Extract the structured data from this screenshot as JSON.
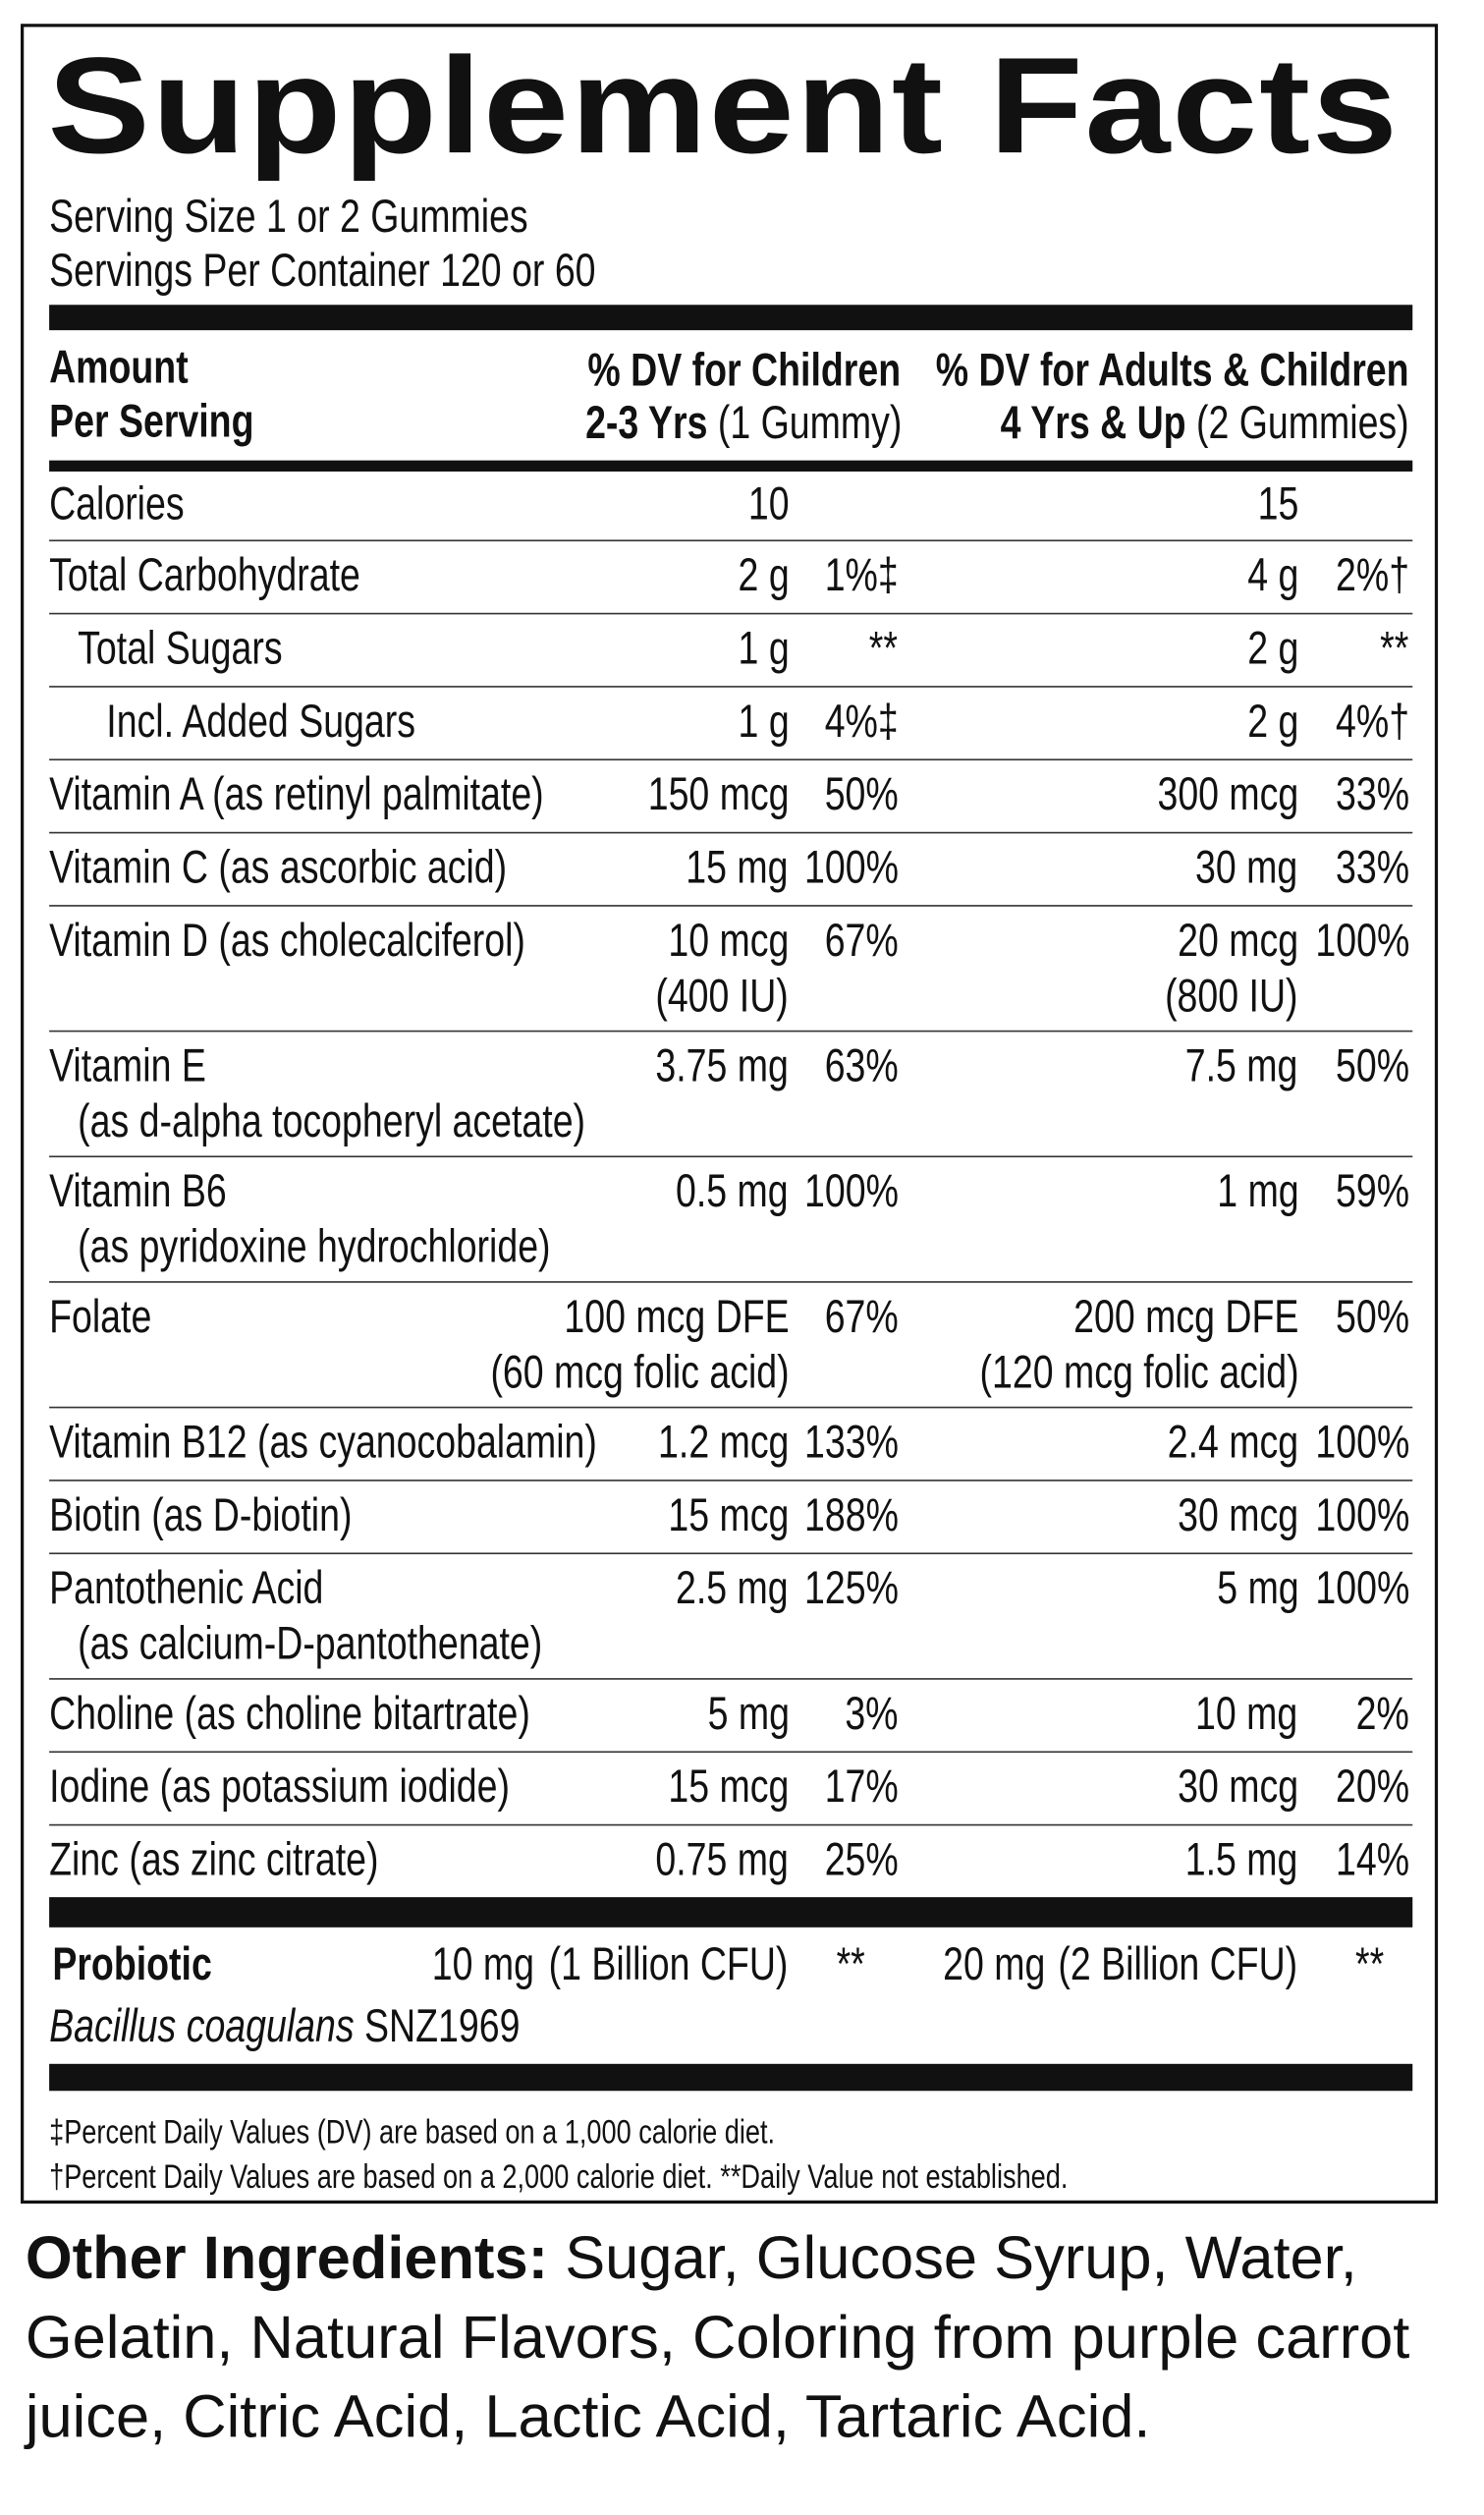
{
  "title": "Supplement Facts",
  "serving": [
    "Serving Size 1 or 2 Gummies",
    "Servings Per Container 120 or 60"
  ],
  "header": {
    "amount": [
      "Amount",
      "Per Serving"
    ],
    "children": {
      "line1": "% DV for Children",
      "bold": "2-3 Yrs",
      "regular": "(1 Gummy)"
    },
    "adults": {
      "line1": "% DV for Adults & Children",
      "bold": "4 Yrs & Up",
      "regular": "(2 Gummies)"
    }
  },
  "rows": [
    {
      "name": "Calories",
      "amount1": "10",
      "amount2": "15"
    },
    {
      "name": "Total Carbohydrate",
      "amount1": "2 g",
      "dv1": "1%‡",
      "amount2": "4 g",
      "dv2": "2%†"
    },
    {
      "name": "Total Sugars",
      "indent": 1,
      "amount1": "1 g",
      "dv1": "**",
      "amount2": "2 g",
      "dv2": "**"
    },
    {
      "name": "Incl. Added Sugars",
      "indent": 2,
      "amount1": "1 g",
      "dv1": "4%‡",
      "amount2": "2 g",
      "dv2": "4%†"
    },
    {
      "name": "Vitamin A (as retinyl palmitate)",
      "amount1": "150 mcg",
      "dv1": "50%",
      "amount2": "300 mcg",
      "dv2": "33%"
    },
    {
      "name": "Vitamin C (as ascorbic acid)",
      "amount1": "15 mg",
      "dv1": "100%",
      "amount2": "30 mg",
      "dv2": "33%"
    },
    {
      "name": "Vitamin D (as cholecalciferol)",
      "amount1": "10 mcg",
      "amount1b": "(400 IU)",
      "dv1": "67%",
      "amount2": "20 mcg",
      "amount2b": "(800 IU)",
      "dv2": "100%"
    },
    {
      "name": "Vitamin E",
      "note": "(as d-alpha tocopheryl acetate)",
      "amount1": "3.75 mg",
      "dv1": "63%",
      "amount2": "7.5 mg",
      "dv2": "50%"
    },
    {
      "name": "Vitamin B6",
      "note": "(as pyridoxine hydrochloride)",
      "amount1": "0.5 mg",
      "dv1": "100%",
      "amount2": "1 mg",
      "dv2": "59%"
    },
    {
      "name": "Folate",
      "amount1": "100 mcg DFE",
      "amount1b": "(60 mcg folic acid)",
      "dv1": "67%",
      "amount2": "200 mcg DFE",
      "amount2b": "(120 mcg folic acid)",
      "dv2": "50%"
    },
    {
      "name": "Vitamin B12 (as cyanocobalamin)",
      "amount1": "1.2 mcg",
      "dv1": "133%",
      "amount2": "2.4 mcg",
      "dv2": "100%"
    },
    {
      "name": "Biotin (as D-biotin)",
      "amount1": "15 mcg",
      "dv1": "188%",
      "amount2": "30 mcg",
      "dv2": "100%"
    },
    {
      "name": "Pantothenic Acid",
      "note": "(as calcium-D-pantothenate)",
      "amount1": "2.5 mg",
      "dv1": "125%",
      "amount2": "5 mg",
      "dv2": "100%"
    },
    {
      "name": "Choline (as choline bitartrate)",
      "amount1": "5 mg",
      "dv1": "3%",
      "amount2": "10 mg",
      "dv2": "2%"
    },
    {
      "name": "Iodine (as potassium iodide)",
      "amount1": "15 mcg",
      "dv1": "17%",
      "amount2": "30 mcg",
      "dv2": "20%"
    },
    {
      "name": "Zinc (as zinc citrate)",
      "amount1": "0.75 mg",
      "dv1": "25%",
      "amount2": "1.5 mg",
      "dv2": "14%"
    }
  ],
  "probiotic": {
    "name": "Probiotic",
    "amount1": "10 mg",
    "cfu1": "(1 Billion CFU)",
    "dv1": "**",
    "amount2": "20 mg",
    "cfu2": "(2 Billion CFU)",
    "dv2": "**",
    "species": "Bacillus coagulans",
    "strain": "SNZ1969"
  },
  "footnotes": [
    "‡Percent Daily Values (DV) are based on a 1,000 calorie diet.",
    "†Percent Daily Values are based on a 2,000 calorie diet. **Daily Value not established."
  ],
  "other_ingredients": {
    "label": "Other Ingredients:",
    "text": "Sugar, Glucose Syrup, Water, Gelatin, Natural Flavors, Coloring from purple carrot juice, Citric Acid, Lactic Acid, Tartaric Acid."
  }
}
